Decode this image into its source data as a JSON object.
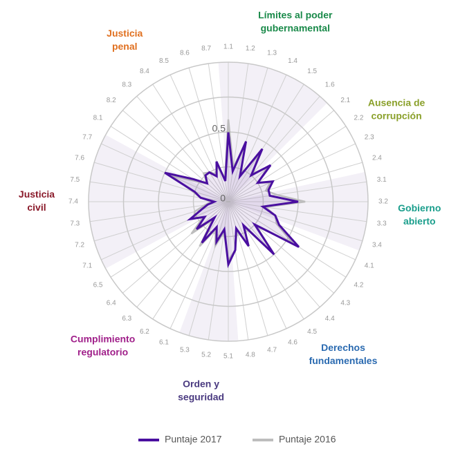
{
  "chart_data": {
    "type": "radar",
    "categories": [
      "1.1",
      "1.2",
      "1.3",
      "1.4",
      "1.5",
      "1.6",
      "2.1",
      "2.2",
      "2.3",
      "2.4",
      "3.1",
      "3.2",
      "3.3",
      "3.4",
      "4.1",
      "4.2",
      "4.3",
      "4.4",
      "4.5",
      "4.6",
      "4.7",
      "4.8",
      "5.1",
      "5.2",
      "5.3",
      "6.1",
      "6.2",
      "6.3",
      "6.4",
      "6.5",
      "7.1",
      "7.2",
      "7.3",
      "7.4",
      "7.5",
      "7.6",
      "7.7",
      "8.1",
      "8.2",
      "8.3",
      "8.4",
      "8.5",
      "8.6",
      "8.7"
    ],
    "series": [
      {
        "name": "Puntaje 2017",
        "color": "#4a0fa0",
        "values": [
          0.5,
          0.22,
          0.45,
          0.2,
          0.45,
          0.25,
          0.4,
          0.25,
          0.35,
          0.3,
          0.3,
          0.5,
          0.25,
          0.35,
          0.4,
          0.6,
          0.25,
          0.5,
          0.2,
          0.35,
          0.2,
          0.35,
          0.45,
          0.2,
          0.3,
          0.2,
          0.35,
          0.15,
          0.3,
          0.2,
          0.3,
          0.2,
          0.15,
          0.1,
          0.2,
          0.25,
          0.5,
          0.3,
          0.2,
          0.25,
          0.25,
          0.2,
          0.3,
          0.15
        ]
      },
      {
        "name": "Puntaje 2016",
        "color": "#bdbdbd",
        "values": [
          0.59,
          0.25,
          0.42,
          0.22,
          0.4,
          0.27,
          0.37,
          0.25,
          0.33,
          0.28,
          0.35,
          0.55,
          0.27,
          0.35,
          0.38,
          0.55,
          0.27,
          0.48,
          0.22,
          0.33,
          0.22,
          0.35,
          0.42,
          0.22,
          0.33,
          0.22,
          0.38,
          0.17,
          0.35,
          0.22,
          0.27,
          0.25,
          0.17,
          0.12,
          0.2,
          0.27,
          0.45,
          0.27,
          0.2,
          0.27,
          0.25,
          0.22,
          0.27,
          0.17
        ]
      }
    ],
    "groups": [
      {
        "lines": [
          "Límites al poder",
          "gubernamental"
        ],
        "color": "#1a8a4a"
      },
      {
        "lines": [
          "Ausencia de",
          "corrupción"
        ],
        "color": "#8aa02a"
      },
      {
        "lines": [
          "Gobierno",
          "abierto"
        ],
        "color": "#1a9e8c"
      },
      {
        "lines": [
          "Derechos",
          "fundamentales"
        ],
        "color": "#2a6ab0"
      },
      {
        "lines": [
          "Orden y",
          "seguridad"
        ],
        "color": "#4a3a80"
      },
      {
        "lines": [
          "Cumplimiento",
          "regulatorio"
        ],
        "color": "#a0208a"
      },
      {
        "lines": [
          "Justicia",
          "civil"
        ],
        "color": "#8a1a2a"
      },
      {
        "lines": [
          "Justicia",
          "penal"
        ],
        "color": "#e07020"
      }
    ],
    "ylim": [
      0,
      1
    ],
    "yticks": [
      0,
      0.5
    ],
    "grid_rings": [
      0.25,
      0.5,
      0.75,
      1
    ]
  }
}
